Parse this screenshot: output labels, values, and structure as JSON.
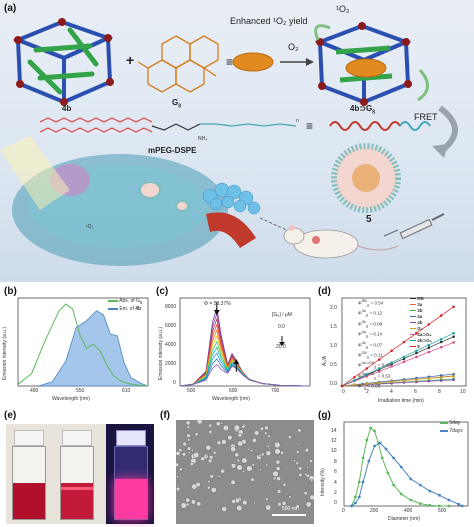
{
  "panel_a": {
    "label": "(a)",
    "cage_label": "4b",
    "guest_label_main": "G",
    "guest_label_sub": "8",
    "complex_label_main": "4b",
    "complex_label_op": "⊃",
    "complex_label_guest": "G",
    "complex_label_sub": "8",
    "enhanced_text": "Enhanced ¹O₂ yield",
    "singlet_o2": "¹O₂",
    "o2": "O₂",
    "fret": "FRET",
    "mpeg_label": "mPEG-DSPE",
    "nanoparticle_label": "5",
    "cell_singlet": "¹O₂",
    "plus": "+",
    "equiv1": "≡",
    "equiv2": "≡",
    "peg_n": "n",
    "nh4": "NH₄"
  },
  "panel_b": {
    "label": "(b)",
    "ylabel": "Emission intensity (a.u.)",
    "xlabel": "Wavelength (nm)",
    "xticks": [
      "490",
      "550",
      "610"
    ],
    "legend": [
      {
        "text_main": "Abs. of G",
        "text_sub": "8",
        "color": "#5cb85c"
      },
      {
        "text_main": "Em. of ",
        "text_bold": "4b",
        "color": "#4a84c4"
      }
    ]
  },
  "panel_c": {
    "label": "(c)",
    "phi": "Φ = 53.37%",
    "ylabel": "Emission intensity (a.u.)",
    "xlabel": "Wavelength (nm)",
    "xticks": [
      "500",
      "600",
      "700"
    ],
    "yticks": [
      "0",
      "2000",
      "4000",
      "6000",
      "8000"
    ],
    "conc_label": "[G₈] / μM",
    "conc_start": "0.0",
    "conc_end": "20.0"
  },
  "panel_d": {
    "label": "(d)",
    "ylabel": "A₀/A",
    "xlabel": "Irradiation time (min)",
    "xticks": [
      "0",
      "2",
      "4",
      "6",
      "8",
      "10"
    ],
    "yticks": [
      "0.0",
      "0.5",
      "1.0",
      "1.5",
      "2.0"
    ],
    "phi_rows": [
      {
        "phi": "Φ",
        "sup": "RB",
        "sub": "Δ",
        "val": "= 0.54"
      },
      {
        "phi": "Φ",
        "sup": "3a",
        "sub": "Δ",
        "val": "= 0.12"
      },
      {
        "phi": "Φ",
        "sup": "3b",
        "sub": "Δ",
        "val": "= 0.08"
      },
      {
        "phi": "Φ",
        "sup": "4a",
        "sub": "Δ",
        "val": "= 0.14"
      },
      {
        "phi": "Φ",
        "sup": "4b",
        "sub": "Δ",
        "val": "= 0.07"
      },
      {
        "phi": "Φ",
        "sup": "G8",
        "sub": "Δ",
        "val": "= 0.11"
      },
      {
        "phi": "Φ",
        "sup": "4a⊃G8",
        "sub": "Δ",
        "val": "= 0.45"
      },
      {
        "phi": "Φ",
        "sup": "4b⊃G8",
        "sub": "Δ",
        "val": "= 0.53"
      },
      {
        "phi": "Φ",
        "sup": "5",
        "sub": "Δ",
        "val": "= 0.86"
      }
    ],
    "legend": [
      {
        "name": "RB",
        "color": "#333333"
      },
      {
        "name": "3a",
        "color": "#e06b2c"
      },
      {
        "name": "3b",
        "color": "#3ca84b"
      },
      {
        "name": "4a",
        "color": "#3a6fb5"
      },
      {
        "name": "4b",
        "color": "#8a4fb0"
      },
      {
        "name": "G₈",
        "color": "#c9a227"
      },
      {
        "name": "4a⊃G₈",
        "color": "#d94b8a"
      },
      {
        "name": "4b⊃G₈",
        "color": "#1fa3a3"
      },
      {
        "name": "5",
        "color": "#d62728"
      }
    ]
  },
  "panel_e": {
    "label": "(e)"
  },
  "panel_f": {
    "label": "(f)",
    "scale_bar": "500 nm"
  },
  "panel_g": {
    "label": "(g)",
    "ylabel": "Intensity (%)",
    "xlabel": "Diameter (nm)",
    "xticks": [
      "0",
      "200",
      "400",
      "600"
    ],
    "yticks": [
      "0",
      "2",
      "4",
      "6",
      "8",
      "10",
      "12",
      "14"
    ],
    "legend": [
      {
        "text": "5day",
        "color": "#5cb85c"
      },
      {
        "text": "7days",
        "color": "#4a84c4"
      }
    ]
  },
  "chart_data": [
    {
      "type": "area",
      "panel": "b",
      "xlabel": "Wavelength (nm)",
      "ylabel": "Emission intensity (a.u.)",
      "xlim": [
        460,
        650
      ],
      "series": [
        {
          "name": "Abs. of G8",
          "x": [
            460,
            480,
            500,
            520,
            530,
            540,
            550,
            560,
            570,
            580,
            590,
            600,
            610,
            620,
            635,
            650
          ],
          "values": [
            0.02,
            0.15,
            0.55,
            0.9,
            0.98,
            0.92,
            0.62,
            0.45,
            0.5,
            0.42,
            0.25,
            0.12,
            0.06,
            0.03,
            0.01,
            0.0
          ]
        },
        {
          "name": "Em. of 4b",
          "x": [
            490,
            510,
            530,
            545,
            560,
            575,
            585,
            595,
            605,
            615,
            625,
            640,
            650
          ],
          "values": [
            0.0,
            0.05,
            0.3,
            0.7,
            0.78,
            0.9,
            0.85,
            0.62,
            0.6,
            0.28,
            0.1,
            0.03,
            0.0
          ]
        }
      ]
    },
    {
      "type": "line",
      "panel": "c",
      "xlabel": "Wavelength (nm)",
      "ylabel": "Emission intensity (a.u.)",
      "xlim": [
        450,
        750
      ],
      "ylim": [
        0,
        9000
      ],
      "series": [
        {
          "name": "0.0",
          "x": [
            450,
            480,
            510,
            525,
            535,
            545,
            560,
            570,
            580,
            595,
            610,
            640,
            680,
            720,
            750
          ],
          "values": [
            0,
            200,
            1500,
            6500,
            8000,
            5200,
            2200,
            3300,
            2600,
            1400,
            700,
            250,
            80,
            20,
            0
          ]
        },
        {
          "name": "20.0",
          "x": [
            450,
            480,
            510,
            525,
            535,
            545,
            560,
            570,
            580,
            595,
            610,
            640,
            680,
            720,
            750
          ],
          "values": [
            0,
            150,
            600,
            1800,
            2200,
            1700,
            1300,
            2000,
            1800,
            1100,
            600,
            250,
            80,
            20,
            0
          ]
        }
      ]
    },
    {
      "type": "scatter",
      "panel": "d",
      "xlabel": "Irradiation time (min)",
      "ylabel": "A₀/A",
      "xlim": [
        0,
        10
      ],
      "ylim": [
        0,
        2.0
      ],
      "series": [
        {
          "name": "RB",
          "x": [
            0,
            1,
            2,
            3,
            4,
            5,
            6,
            7,
            8,
            9
          ],
          "values": [
            0.0,
            0.12,
            0.25,
            0.37,
            0.5,
            0.62,
            0.75,
            0.87,
            1.0,
            1.12
          ]
        },
        {
          "name": "3a",
          "x": [
            0,
            1,
            2,
            3,
            4,
            5,
            6,
            7,
            8,
            9
          ],
          "values": [
            0.0,
            0.03,
            0.05,
            0.08,
            0.1,
            0.13,
            0.15,
            0.18,
            0.2,
            0.23
          ]
        },
        {
          "name": "3b",
          "x": [
            0,
            1,
            2,
            3,
            4,
            5,
            6,
            7,
            8,
            9
          ],
          "values": [
            0.0,
            0.02,
            0.04,
            0.05,
            0.07,
            0.09,
            0.11,
            0.12,
            0.14,
            0.16
          ]
        },
        {
          "name": "4a",
          "x": [
            0,
            1,
            2,
            3,
            4,
            5,
            6,
            7,
            8,
            9
          ],
          "values": [
            0.0,
            0.03,
            0.06,
            0.09,
            0.12,
            0.15,
            0.18,
            0.21,
            0.24,
            0.27
          ]
        },
        {
          "name": "4b",
          "x": [
            0,
            1,
            2,
            3,
            4,
            5,
            6,
            7,
            8,
            9
          ],
          "values": [
            0.0,
            0.02,
            0.03,
            0.05,
            0.06,
            0.08,
            0.09,
            0.11,
            0.12,
            0.14
          ]
        },
        {
          "name": "G8",
          "x": [
            0,
            1,
            2,
            3,
            4,
            5,
            6,
            7,
            8,
            9
          ],
          "values": [
            0.0,
            0.03,
            0.05,
            0.07,
            0.1,
            0.12,
            0.14,
            0.17,
            0.19,
            0.22
          ]
        },
        {
          "name": "4a⊃G8",
          "x": [
            0,
            1,
            2,
            3,
            4,
            5,
            6,
            7,
            8,
            9
          ],
          "values": [
            0.0,
            0.12,
            0.22,
            0.33,
            0.45,
            0.55,
            0.66,
            0.77,
            0.88,
            0.99
          ]
        },
        {
          "name": "4b⊃G8",
          "x": [
            0,
            1,
            2,
            3,
            4,
            5,
            6,
            7,
            8,
            9
          ],
          "values": [
            0.0,
            0.13,
            0.26,
            0.4,
            0.53,
            0.66,
            0.8,
            0.93,
            1.06,
            1.2
          ]
        },
        {
          "name": "5",
          "x": [
            0,
            1,
            2,
            3,
            4,
            5,
            6,
            7,
            8,
            9
          ],
          "values": [
            0.0,
            0.2,
            0.4,
            0.6,
            0.8,
            1.0,
            1.2,
            1.4,
            1.6,
            1.8
          ]
        }
      ]
    },
    {
      "type": "line",
      "panel": "g",
      "xlabel": "Diameter (nm)",
      "ylabel": "Intensity (%)",
      "xlim": [
        0,
        650
      ],
      "ylim": [
        0,
        14
      ],
      "series": [
        {
          "name": "5day",
          "x": [
            40,
            60,
            80,
            100,
            120,
            140,
            160,
            180,
            200,
            230,
            260,
            300,
            350,
            400,
            450,
            500,
            550
          ],
          "values": [
            0,
            1.5,
            4,
            8,
            11,
            13,
            12.5,
            10.5,
            8,
            5.5,
            3.5,
            2,
            1,
            0.4,
            0.1,
            0,
            0
          ]
        },
        {
          "name": "7days",
          "x": [
            40,
            60,
            80,
            100,
            130,
            160,
            190,
            220,
            260,
            300,
            350,
            400,
            450,
            500,
            550,
            600,
            620
          ],
          "values": [
            0,
            0.5,
            1.5,
            4,
            7.5,
            10,
            10.5,
            9.5,
            8,
            6.5,
            4.5,
            3.5,
            2.5,
            1.8,
            1,
            0.3,
            0
          ]
        }
      ]
    }
  ]
}
